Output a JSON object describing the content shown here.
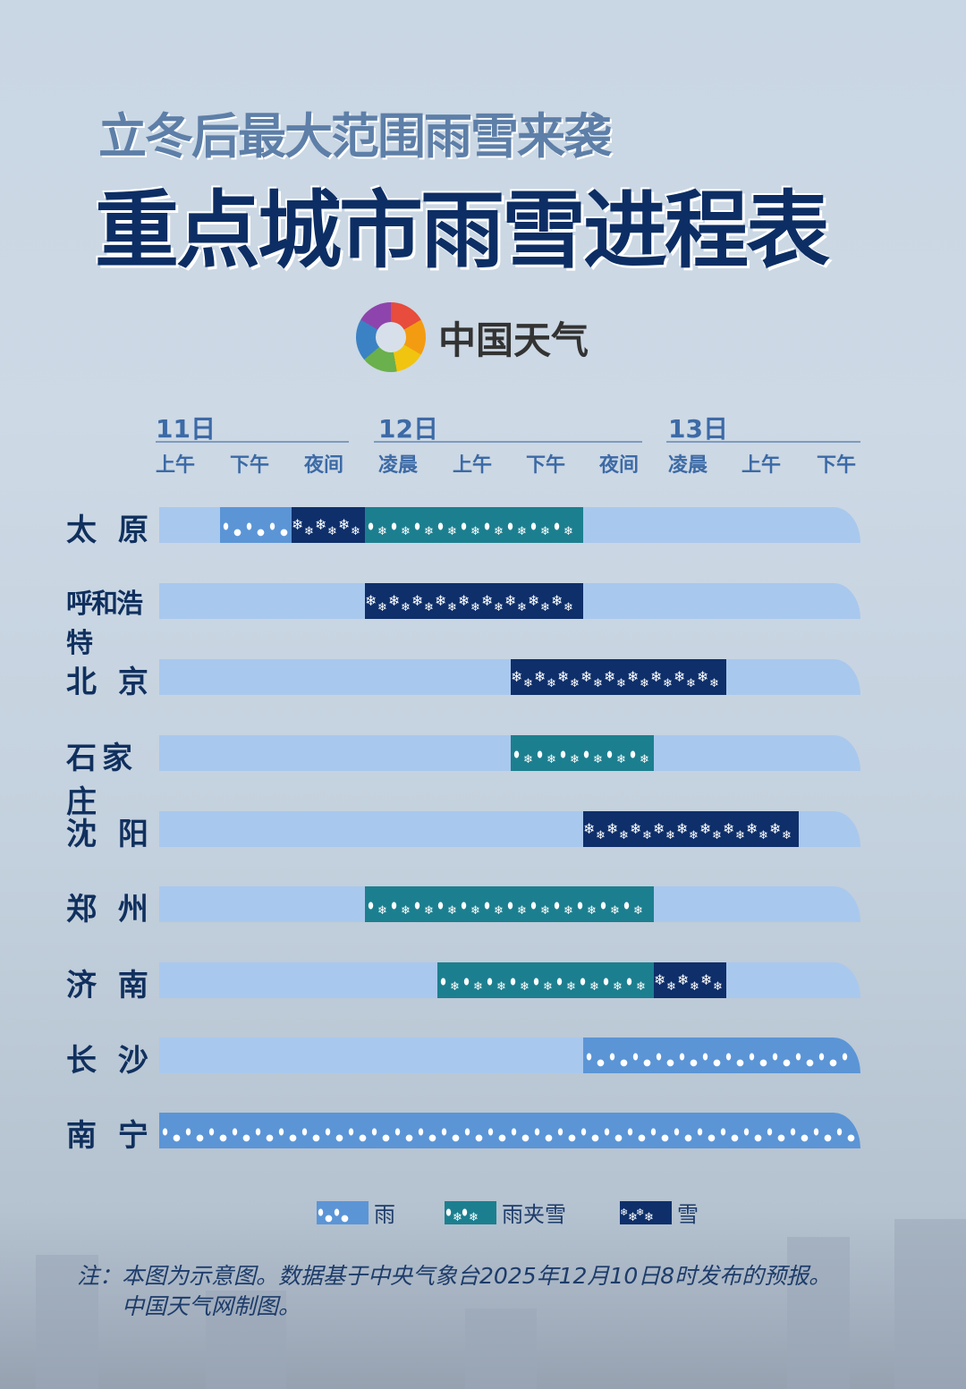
{
  "header": {
    "subtitle": "立冬后最大范围雨雪来袭",
    "title": "重点城市雨雪进程表",
    "logo_text": "中国天气"
  },
  "chart_data": {
    "type": "table",
    "title": "重点城市雨雪进程表",
    "days": [
      {
        "label": "11日",
        "slots": [
          "上午",
          "下午",
          "夜间"
        ]
      },
      {
        "label": "12日",
        "slots": [
          "凌晨",
          "上午",
          "下午",
          "夜间"
        ]
      },
      {
        "label": "13日",
        "slots": [
          "凌晨",
          "上午",
          "下午"
        ]
      }
    ],
    "slot_labels": [
      "上午",
      "下午",
      "夜间",
      "凌晨",
      "上午",
      "下午",
      "夜间",
      "凌晨",
      "上午",
      "下午"
    ],
    "types": {
      "rain": {
        "label": "雨",
        "color": "#5b95d6"
      },
      "mix": {
        "label": "雨夹雪",
        "color": "#1c7f8f"
      },
      "snow": {
        "label": "雪",
        "color": "#0e2f6a"
      }
    },
    "base_color": "#a9c8ee",
    "cities": [
      {
        "name": "太 原",
        "segments": [
          {
            "type": "rain",
            "from": 1,
            "to": 1
          },
          {
            "type": "snow",
            "from": 2,
            "to": 2
          },
          {
            "type": "mix",
            "from": 3,
            "to": 5
          }
        ]
      },
      {
        "name": "呼和浩特",
        "segments": [
          {
            "type": "snow",
            "from": 3,
            "to": 5
          }
        ]
      },
      {
        "name": "北 京",
        "segments": [
          {
            "type": "snow",
            "from": 5,
            "to": 7
          }
        ]
      },
      {
        "name": "石家庄",
        "segments": [
          {
            "type": "mix",
            "from": 5,
            "to": 6
          }
        ]
      },
      {
        "name": "沈 阳",
        "segments": [
          {
            "type": "snow",
            "from": 6,
            "to": 8
          }
        ]
      },
      {
        "name": "郑 州",
        "segments": [
          {
            "type": "mix",
            "from": 3,
            "to": 6
          }
        ]
      },
      {
        "name": "济 南",
        "segments": [
          {
            "type": "mix",
            "from": 4,
            "to": 6
          },
          {
            "type": "snow",
            "from": 7,
            "to": 7
          }
        ]
      },
      {
        "name": "长 沙",
        "segments": [
          {
            "type": "rain",
            "from": 6,
            "to": 9
          }
        ]
      },
      {
        "name": "南 宁",
        "segments": [
          {
            "type": "rain",
            "from": 0,
            "to": 9
          }
        ]
      }
    ]
  },
  "legend": [
    {
      "type": "rain",
      "label": "雨"
    },
    {
      "type": "mix",
      "label": "雨夹雪"
    },
    {
      "type": "snow",
      "label": "雪"
    }
  ],
  "note": {
    "line1": "注：本图为示意图。数据基于中央气象台2025年12月10日8时发布的预报。",
    "line2": "中国天气网制图。"
  }
}
